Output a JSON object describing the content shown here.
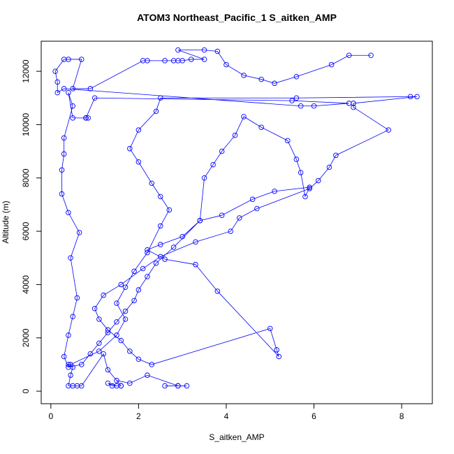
{
  "chart_data": {
    "type": "line",
    "title": "ATOM3 Northeast_Pacific_1 S_aitken_AMP",
    "xlabel": "S_aitken_AMP",
    "ylabel": "Altitude (m)",
    "color": "#0000ff",
    "markers": true,
    "xlim": [
      -0.22,
      8.7
    ],
    "ylim": [
      -470,
      13130
    ],
    "xticks": [
      0,
      2,
      4,
      6,
      8
    ],
    "yticks": [
      0,
      2000,
      4000,
      6000,
      8000,
      10000,
      12000
    ],
    "x": [
      2.6,
      2.9,
      3.1,
      2.9,
      2.2,
      1.8,
      1.5,
      1.6,
      1.4,
      1.3,
      1.5,
      1.6,
      1.3,
      1.2,
      0.7,
      0.6,
      0.5,
      0.4,
      0.45,
      0.5,
      0.4,
      0.45,
      1.1,
      1.5,
      1.7,
      1.5,
      1.7,
      1.9,
      2.2,
      2.5,
      2.7,
      2.5,
      2.3,
      2.0,
      1.8,
      2.0,
      2.4,
      2.5,
      5.6,
      8.2,
      8.35,
      6.9,
      6.9,
      7.7,
      6.5,
      6.35,
      6.1,
      5.9,
      4.7,
      4.3,
      4.1,
      3.3,
      2.5,
      2.1,
      1.6,
      1.2,
      1.0,
      1.1,
      1.3,
      1.6,
      1.8,
      2.0,
      2.3,
      5.0,
      5.15,
      5.2,
      3.8,
      3.3,
      2.6,
      2.2,
      2.5,
      3.0,
      3.4,
      3.9,
      4.6,
      5.1,
      5.9,
      5.8,
      5.7,
      5.6,
      5.4,
      4.8,
      4.4,
      4.2,
      3.9,
      3.7,
      3.5,
      3.4,
      2.8,
      2.4,
      2.2,
      2.0,
      1.9,
      1.7,
      1.5,
      1.3,
      1.1,
      0.9,
      0.7,
      0.4,
      0.3,
      0.4,
      0.5,
      0.6,
      0.45,
      0.65,
      0.4,
      0.25,
      0.25,
      0.3,
      0.3,
      0.5,
      0.4,
      0.5,
      0.8,
      0.85,
      0.8,
      0.8,
      1.0,
      5.5,
      6.8,
      6.0,
      5.7,
      0.3,
      0.15,
      0.15,
      0.1,
      0.3,
      0.4,
      0.7,
      0.5,
      0.9,
      2.1,
      2.2,
      2.6,
      2.8,
      2.9,
      3.0,
      3.2,
      3.5,
      2.9,
      3.5,
      3.8,
      4.0,
      4.4,
      4.8,
      5.1,
      5.6,
      6.4,
      6.8,
      7.3
    ],
    "values": [
      200,
      200,
      200,
      200,
      600,
      300,
      400,
      200,
      200,
      300,
      200,
      200,
      800,
      1400,
      200,
      200,
      200,
      200,
      600,
      900,
      1000,
      1000,
      1500,
      2100,
      2700,
      3300,
      3900,
      4500,
      5200,
      6200,
      6800,
      7300,
      7800,
      8600,
      9100,
      9800,
      10500,
      11000,
      11000,
      11050,
      11050,
      10800,
      10650,
      9800,
      8850,
      8400,
      7900,
      7600,
      6850,
      6500,
      6000,
      5600,
      5050,
      4600,
      4000,
      3600,
      3100,
      2700,
      2300,
      1900,
      1500,
      1200,
      1000,
      2350,
      1550,
      1300,
      3750,
      4750,
      4950,
      5300,
      5500,
      5800,
      6400,
      6600,
      7200,
      7500,
      7650,
      7300,
      8200,
      8700,
      9400,
      9900,
      10300,
      9600,
      9000,
      8500,
      8000,
      6400,
      5400,
      4800,
      4300,
      3800,
      3400,
      3000,
      2600,
      2200,
      1800,
      1400,
      1000,
      900,
      1300,
      2100,
      2800,
      3500,
      5000,
      5950,
      6700,
      7400,
      8300,
      8900,
      9500,
      10700,
      11200,
      10250,
      10250,
      10250,
      10250,
      10250,
      11000,
      10900,
      10800,
      10700,
      10700,
      11350,
      11200,
      11600,
      12000,
      12450,
      12450,
      12450,
      11350,
      11350,
      12400,
      12400,
      12400,
      12400,
      12400,
      12400,
      12450,
      12450,
      12800,
      12800,
      12750,
      12250,
      11850,
      11700,
      11550,
      11800,
      12250,
      12600,
      12600
    ]
  }
}
